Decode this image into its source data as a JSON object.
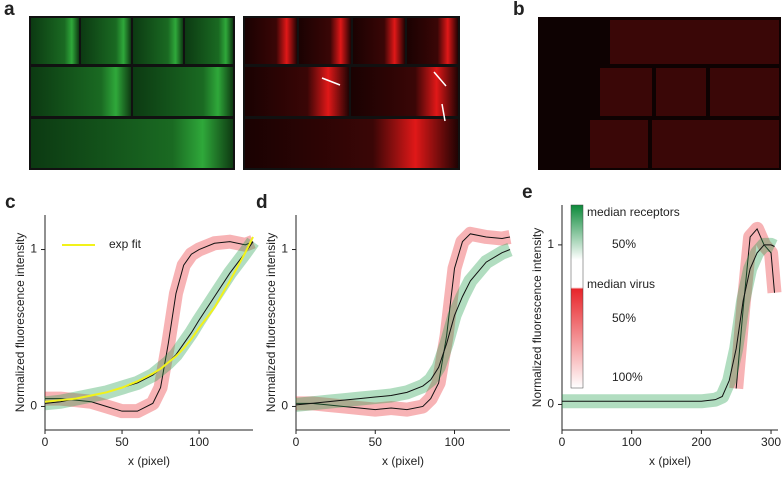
{
  "figure": {
    "panel_labels": [
      "a",
      "b"
    ]
  },
  "chart_data": [
    {
      "type": "line",
      "panel": "c",
      "xlabel": "x (pixel)",
      "ylabel": "Normalized fluorescence intensity",
      "xlim": [
        0,
        135
      ],
      "ylim": [
        -0.15,
        1.22
      ],
      "xticks": [
        0,
        50,
        100
      ],
      "yticks": [
        0,
        1
      ],
      "legend": "upper left",
      "x": [
        0,
        10,
        20,
        30,
        40,
        50,
        60,
        70,
        75,
        80,
        85,
        90,
        95,
        100,
        110,
        120,
        130,
        135
      ],
      "series": [
        {
          "color": "#e8262b",
          "values": [
            0.05,
            0.05,
            0.04,
            0.03,
            0.0,
            -0.03,
            -0.03,
            0.02,
            0.12,
            0.4,
            0.72,
            0.9,
            0.97,
            1.0,
            1.04,
            1.05,
            1.03,
            1.05
          ]
        },
        {
          "color": "#1f9e4a",
          "values": [
            0.02,
            0.03,
            0.05,
            0.07,
            0.09,
            0.12,
            0.15,
            0.2,
            0.24,
            0.28,
            0.33,
            0.4,
            0.47,
            0.55,
            0.7,
            0.85,
            0.98,
            1.05
          ]
        },
        {
          "name": "exp fit",
          "color": "#f2f21a",
          "line_only": true,
          "values": [
            0.03,
            0.04,
            0.05,
            0.07,
            0.09,
            0.12,
            0.16,
            0.21,
            0.24,
            0.28,
            0.32,
            0.37,
            0.43,
            0.5,
            0.63,
            0.8,
            0.98,
            1.08
          ]
        }
      ]
    },
    {
      "type": "line",
      "panel": "d",
      "xlabel": "x (pixel)",
      "ylabel": "Normalized fluorescence intensity",
      "xlim": [
        0,
        135
      ],
      "ylim": [
        -0.15,
        1.22
      ],
      "xticks": [
        0,
        50,
        100
      ],
      "yticks": [
        0,
        1
      ],
      "x": [
        0,
        10,
        20,
        30,
        40,
        50,
        60,
        70,
        80,
        85,
        90,
        95,
        100,
        105,
        110,
        120,
        130,
        135
      ],
      "series": [
        {
          "color": "#e8262b",
          "values": [
            0.02,
            0.02,
            0.01,
            0.0,
            -0.01,
            -0.02,
            -0.01,
            -0.02,
            0.0,
            0.05,
            0.15,
            0.45,
            0.88,
            1.05,
            1.1,
            1.08,
            1.07,
            1.08
          ]
        },
        {
          "color": "#1f9e4a",
          "values": [
            0.01,
            0.02,
            0.03,
            0.04,
            0.05,
            0.06,
            0.07,
            0.09,
            0.13,
            0.17,
            0.25,
            0.4,
            0.58,
            0.7,
            0.8,
            0.92,
            0.98,
            1.0
          ]
        }
      ]
    },
    {
      "type": "line",
      "panel": "e",
      "xlabel": "x (pixel)",
      "ylabel": "Normalized fluorescence intensity",
      "xlim": [
        0,
        310
      ],
      "ylim": [
        -0.16,
        1.25
      ],
      "xticks": [
        0,
        100,
        200,
        300
      ],
      "yticks": [
        0,
        1
      ],
      "legend_scale": [
        "50%",
        "50%",
        "100%"
      ],
      "x": [
        0,
        50,
        100,
        150,
        200,
        220,
        230,
        240,
        250,
        260,
        270,
        280,
        290,
        300,
        305
      ],
      "series": [
        {
          "name": "median virus",
          "color": "#e8262b",
          "values": [
            null,
            null,
            null,
            null,
            null,
            null,
            null,
            null,
            0.1,
            0.6,
            1.05,
            1.1,
            1.0,
            0.95,
            0.7
          ]
        },
        {
          "name": "median receptors",
          "color": "#1f9e4a",
          "values": [
            0.02,
            0.02,
            0.02,
            0.02,
            0.02,
            0.03,
            0.05,
            0.15,
            0.35,
            0.65,
            0.85,
            0.95,
            1.0,
            1.0,
            0.99
          ]
        }
      ]
    }
  ]
}
